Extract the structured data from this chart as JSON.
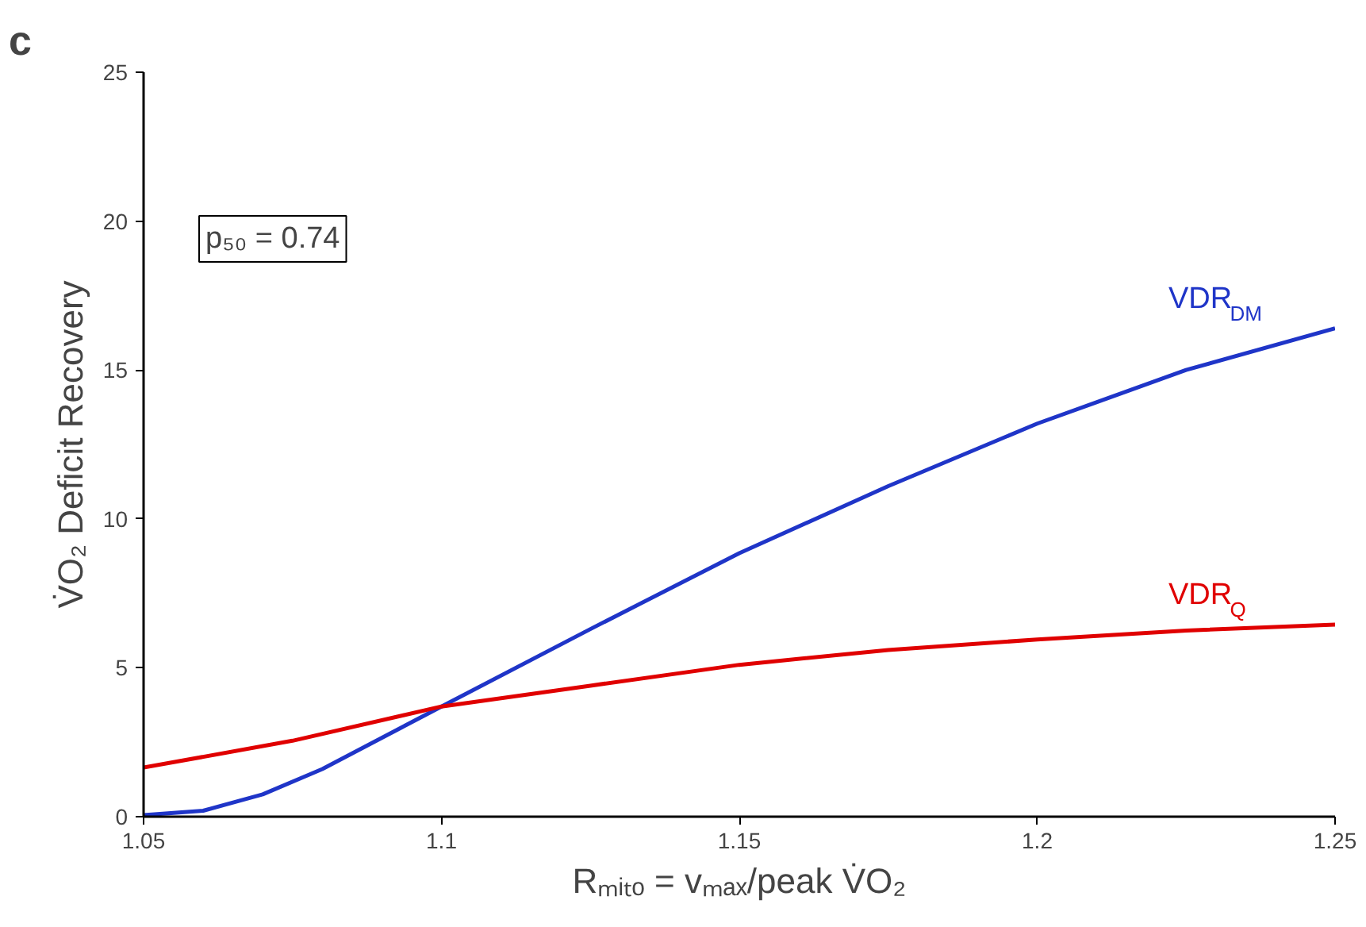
{
  "chart_data": {
    "type": "line",
    "xlabel": "Rₘᵢₜₒ = vₘₐₓ/peak V̇O₂",
    "ylabel": "V̇O₂ Deficit Recovery",
    "x": [
      1.05,
      1.06,
      1.07,
      1.075,
      1.08,
      1.1,
      1.125,
      1.15,
      1.175,
      1.2,
      1.225,
      1.25
    ],
    "series": [
      {
        "name": "VDR$_{DM}$",
        "color": "#1f35c8",
        "values": [
          0.05,
          0.2,
          0.75,
          null,
          1.6,
          3.7,
          6.3,
          8.85,
          11.1,
          13.2,
          15.0,
          16.4
        ]
      },
      {
        "name": "VDR$_{Q}$",
        "color": "#e00000",
        "values": [
          1.65,
          null,
          null,
          2.55,
          null,
          3.7,
          4.4,
          5.1,
          5.6,
          5.95,
          6.25,
          6.45
        ]
      }
    ],
    "xlim": [
      1.05,
      1.25
    ],
    "xticks": [
      1.05,
      1.1,
      1.15,
      1.2,
      1.25
    ],
    "ylim": [
      0,
      25
    ],
    "yticks": [
      0,
      5,
      10,
      15,
      20,
      25
    ],
    "grid": false,
    "line_style": "solid",
    "marker": "none",
    "annotations": [
      "c",
      "p₅₀ = 0.74"
    ]
  }
}
